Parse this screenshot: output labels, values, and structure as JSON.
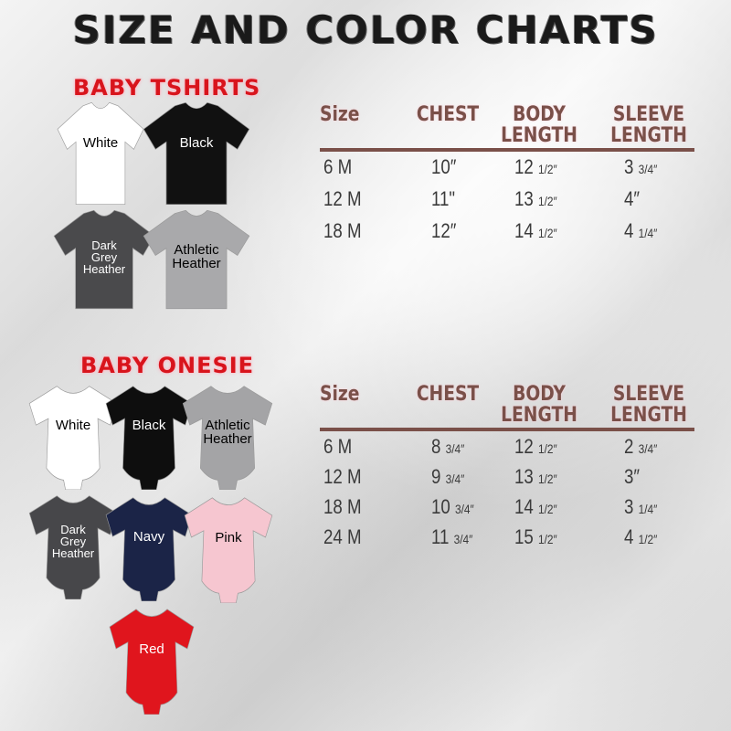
{
  "title": "SIZE AND COLOR CHARTS",
  "tshirts": {
    "heading": "BABY TSHIRTS",
    "colors": [
      {
        "label": "White",
        "fill": "#ffffff",
        "text": "#000000"
      },
      {
        "label": "Black",
        "fill": "#111111",
        "text": "#ffffff"
      },
      {
        "label": "Dark Grey Heather",
        "fill": "#4a4a4c",
        "text": "#ffffff"
      },
      {
        "label": "Athletic Heather",
        "fill": "#a9a9ab",
        "text": "#000000"
      }
    ],
    "table": {
      "headers": [
        "Size",
        "CHEST",
        "BODY LENGTH",
        "SLEEVE LENGTH"
      ],
      "rows": [
        [
          "6 M",
          "10″",
          "12 1/2″",
          "3 3/4″"
        ],
        [
          "12 M",
          "11\"",
          "13 1/2″",
          "4″"
        ],
        [
          "18 M",
          "12″",
          "14 1/2″",
          "4 1/4″"
        ]
      ]
    }
  },
  "onesies": {
    "heading": "BABY ONESIE",
    "colors": [
      {
        "label": "White",
        "fill": "#ffffff",
        "text": "#000000"
      },
      {
        "label": "Black",
        "fill": "#0e0e0e",
        "text": "#ffffff"
      },
      {
        "label": "Athletic Heather",
        "fill": "#a4a4a6",
        "text": "#000000"
      },
      {
        "label": "Dark Grey Heather",
        "fill": "#47474a",
        "text": "#ffffff"
      },
      {
        "label": "Navy",
        "fill": "#1b2447",
        "text": "#ffffff"
      },
      {
        "label": "Pink",
        "fill": "#f6c6d0",
        "text": "#000000"
      },
      {
        "label": "Red",
        "fill": "#e0151d",
        "text": "#ffffff"
      }
    ],
    "table": {
      "headers": [
        "Size",
        "CHEST",
        "BODY LENGTH",
        "SLEEVE LENGTH"
      ],
      "rows": [
        [
          "6 M",
          "8 3/4″",
          "12 1/2″",
          "2 3/4″"
        ],
        [
          "12 M",
          "9 3/4″",
          "13 1/2″",
          "3″"
        ],
        [
          "18 M",
          "10 3/4″",
          "14 1/2″",
          "3 1/4″"
        ],
        [
          "24 M",
          "11 3/4″",
          "15 1/2″",
          "4 1/2″"
        ]
      ]
    }
  }
}
